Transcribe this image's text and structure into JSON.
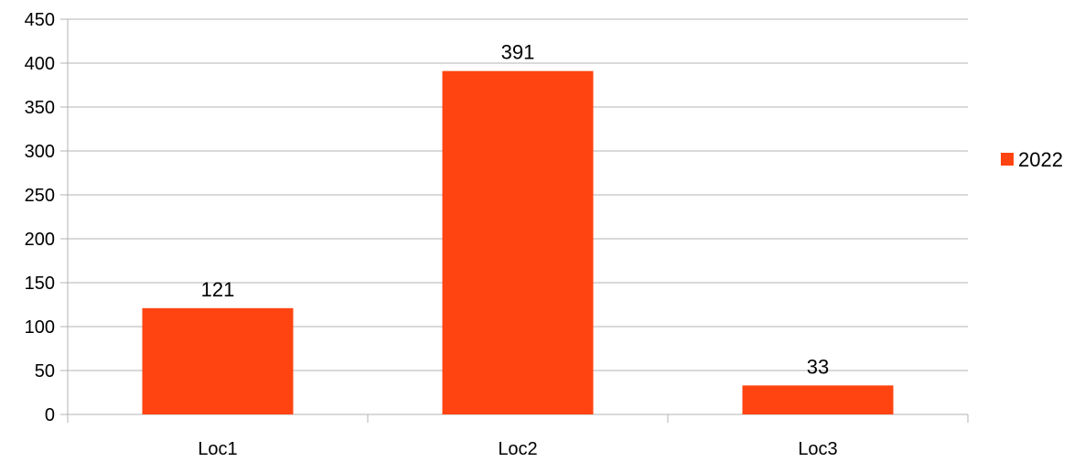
{
  "chart_data": {
    "type": "bar",
    "categories": [
      "Loc1",
      "Loc2",
      "Loc3"
    ],
    "series": [
      {
        "name": "2022",
        "values": [
          121,
          391,
          33
        ],
        "color": "#FF4411"
      }
    ],
    "data_labels": [
      "121",
      "391",
      "33"
    ],
    "title": "",
    "xlabel": "",
    "ylabel": "",
    "ylim": [
      0,
      450
    ],
    "y_ticks": [
      0,
      50,
      100,
      150,
      200,
      250,
      300,
      350,
      400,
      450
    ],
    "grid": true,
    "legend": {
      "position": "right",
      "entries": [
        "2022"
      ]
    }
  }
}
